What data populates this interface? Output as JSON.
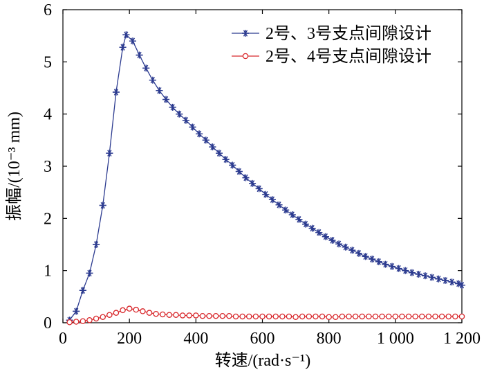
{
  "chart_data": {
    "type": "line",
    "title": "",
    "xlabel": "转速/(rad·s⁻¹)",
    "ylabel": "振幅/(10⁻³ mm)",
    "xlim": [
      0,
      1200
    ],
    "ylim": [
      0,
      6
    ],
    "xticks": [
      0,
      200,
      400,
      600,
      800,
      1000,
      1200
    ],
    "xtick_labels": [
      "0",
      "200",
      "400",
      "600",
      "800",
      "1 000",
      "1 200"
    ],
    "yticks": [
      0,
      1,
      2,
      3,
      4,
      5,
      6
    ],
    "ytick_labels": [
      "0",
      "1",
      "2",
      "3",
      "4",
      "5",
      "6"
    ],
    "grid": false,
    "legend_position": "top-right",
    "series": [
      {
        "name": "2号、3号支点间隙设计",
        "color": "#2b3a8f",
        "marker": "asterisk",
        "x": [
          20,
          40,
          60,
          80,
          100,
          120,
          140,
          160,
          180,
          190,
          210,
          230,
          250,
          270,
          290,
          310,
          330,
          350,
          370,
          390,
          410,
          430,
          450,
          470,
          490,
          510,
          530,
          550,
          570,
          590,
          610,
          630,
          650,
          670,
          690,
          710,
          730,
          750,
          770,
          790,
          810,
          830,
          850,
          870,
          890,
          910,
          930,
          950,
          970,
          990,
          1010,
          1030,
          1050,
          1070,
          1090,
          1110,
          1130,
          1150,
          1170,
          1190,
          1200
        ],
        "y": [
          0.05,
          0.22,
          0.62,
          0.95,
          1.5,
          2.25,
          3.25,
          4.42,
          5.28,
          5.52,
          5.4,
          5.13,
          4.88,
          4.65,
          4.45,
          4.28,
          4.13,
          4.0,
          3.88,
          3.75,
          3.62,
          3.5,
          3.37,
          3.25,
          3.13,
          3.02,
          2.9,
          2.78,
          2.67,
          2.57,
          2.46,
          2.36,
          2.26,
          2.16,
          2.07,
          1.98,
          1.89,
          1.81,
          1.73,
          1.65,
          1.58,
          1.51,
          1.45,
          1.39,
          1.33,
          1.27,
          1.22,
          1.17,
          1.12,
          1.08,
          1.04,
          1.0,
          0.96,
          0.93,
          0.9,
          0.87,
          0.84,
          0.81,
          0.78,
          0.75,
          0.72
        ]
      },
      {
        "name": "2号、4号支点间隙设计",
        "color": "#d8262a",
        "marker": "circle",
        "x": [
          20,
          40,
          60,
          80,
          100,
          120,
          140,
          160,
          180,
          200,
          220,
          240,
          260,
          280,
          300,
          320,
          340,
          360,
          380,
          400,
          420,
          440,
          460,
          480,
          500,
          520,
          540,
          560,
          580,
          600,
          620,
          640,
          660,
          680,
          700,
          720,
          740,
          760,
          780,
          800,
          820,
          840,
          860,
          880,
          900,
          920,
          940,
          960,
          980,
          1000,
          1020,
          1040,
          1060,
          1080,
          1100,
          1120,
          1140,
          1160,
          1180,
          1200
        ],
        "y": [
          0.01,
          0.02,
          0.03,
          0.05,
          0.08,
          0.11,
          0.15,
          0.19,
          0.24,
          0.27,
          0.25,
          0.22,
          0.19,
          0.17,
          0.16,
          0.15,
          0.15,
          0.14,
          0.14,
          0.14,
          0.13,
          0.13,
          0.13,
          0.13,
          0.13,
          0.12,
          0.12,
          0.12,
          0.12,
          0.12,
          0.12,
          0.12,
          0.12,
          0.12,
          0.11,
          0.12,
          0.12,
          0.12,
          0.12,
          0.11,
          0.11,
          0.12,
          0.12,
          0.12,
          0.12,
          0.12,
          0.12,
          0.12,
          0.12,
          0.12,
          0.12,
          0.12,
          0.12,
          0.12,
          0.12,
          0.12,
          0.12,
          0.12,
          0.12,
          0.12
        ]
      }
    ]
  }
}
